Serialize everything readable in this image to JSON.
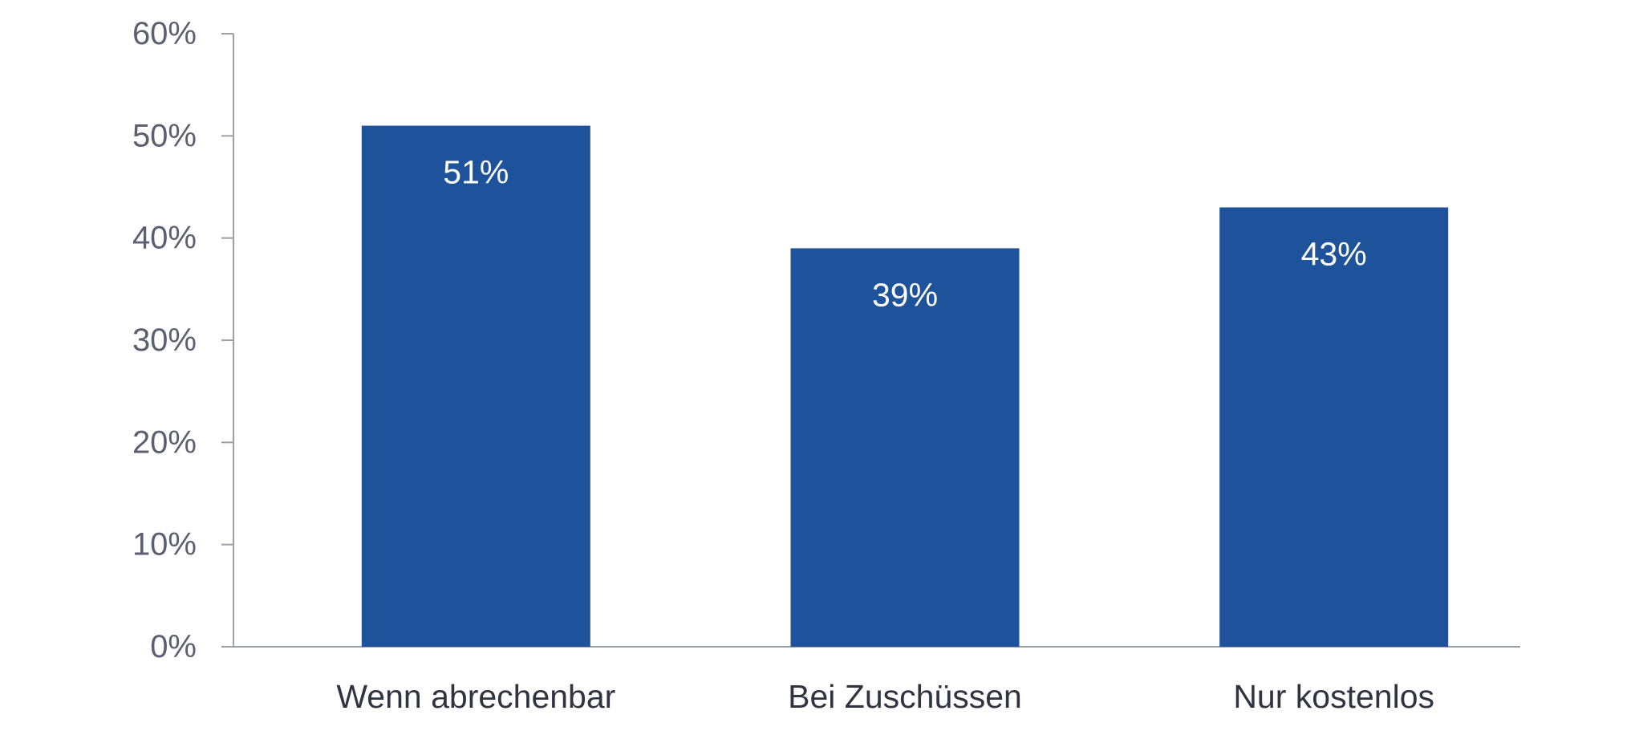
{
  "chart_data": {
    "type": "bar",
    "categories": [
      "Wenn abrechenbar",
      "Bei Zuschüssen",
      "Nur kostenlos"
    ],
    "values": [
      51,
      39,
      43
    ],
    "data_labels": [
      "51%",
      "39%",
      "43%"
    ],
    "y_ticks": [
      0,
      10,
      20,
      30,
      40,
      50,
      60
    ],
    "y_tick_labels": [
      "0%",
      "10%",
      "20%",
      "30%",
      "40%",
      "50%",
      "60%"
    ],
    "ylim": [
      0,
      60
    ],
    "grid": false,
    "legend": "none",
    "bar_color": "#1e539b",
    "axis_color": "#9aa0aa"
  }
}
